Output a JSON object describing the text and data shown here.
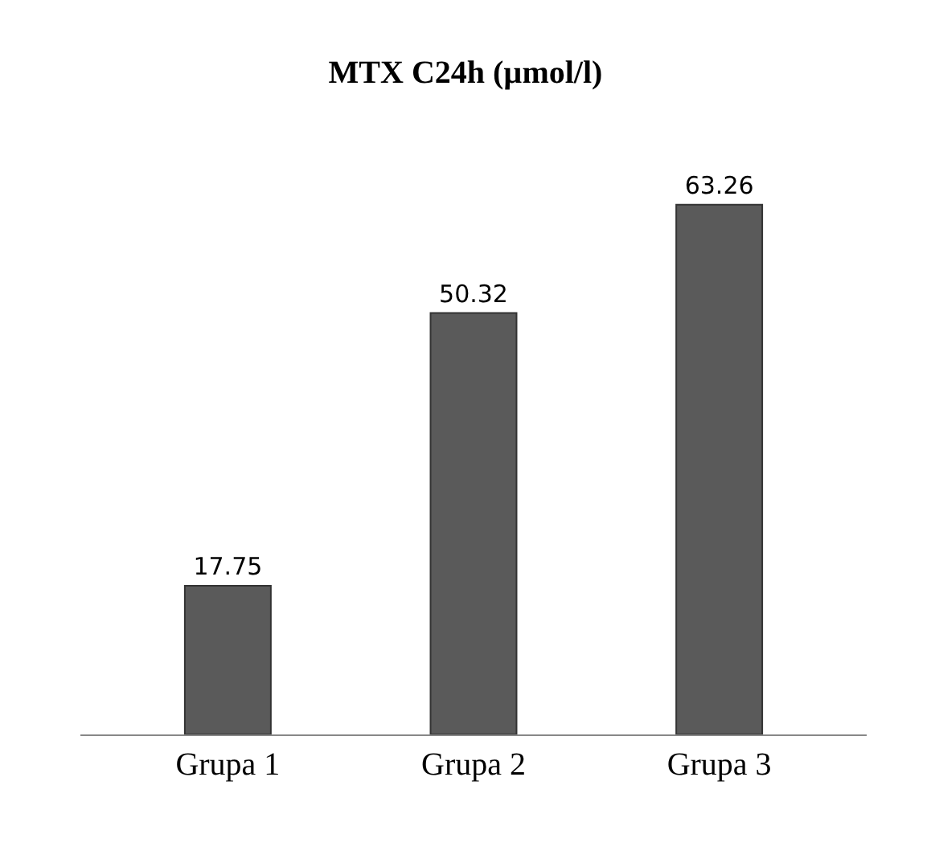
{
  "chart_data": {
    "type": "bar",
    "title": "MTX C24h (µmol/l)",
    "categories": [
      "Grupa 1",
      "Grupa 2",
      "Grupa 3"
    ],
    "values": [
      17.75,
      50.32,
      63.26
    ],
    "color": "#5a5a5a",
    "data_labels": true
  }
}
